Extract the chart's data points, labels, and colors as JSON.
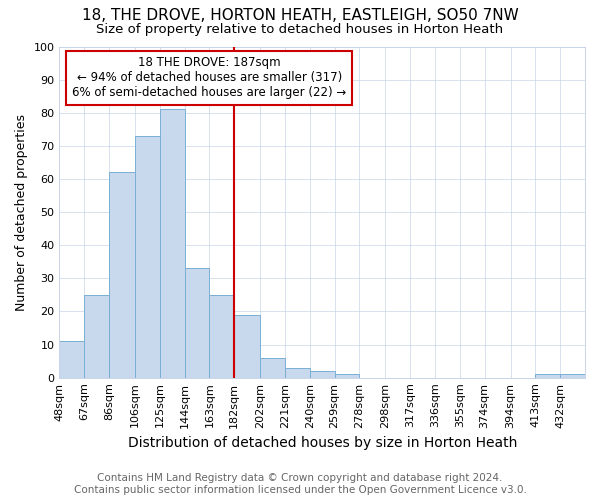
{
  "title": "18, THE DROVE, HORTON HEATH, EASTLEIGH, SO50 7NW",
  "subtitle": "Size of property relative to detached houses in Horton Heath",
  "xlabel": "Distribution of detached houses by size in Horton Heath",
  "ylabel": "Number of detached properties",
  "bin_labels": [
    "48sqm",
    "67sqm",
    "86sqm",
    "106sqm",
    "125sqm",
    "144sqm",
    "163sqm",
    "182sqm",
    "202sqm",
    "221sqm",
    "240sqm",
    "259sqm",
    "278sqm",
    "298sqm",
    "317sqm",
    "336sqm",
    "355sqm",
    "374sqm",
    "394sqm",
    "413sqm",
    "432sqm"
  ],
  "bin_edges": [
    48,
    67,
    86,
    106,
    125,
    144,
    163,
    182,
    202,
    221,
    240,
    259,
    278,
    298,
    317,
    336,
    355,
    374,
    394,
    413,
    432,
    451
  ],
  "counts": [
    11,
    25,
    62,
    73,
    81,
    33,
    25,
    19,
    6,
    3,
    2,
    1,
    0,
    0,
    0,
    0,
    0,
    0,
    0,
    1,
    1
  ],
  "bar_color": "#c8d9ee",
  "bar_edge_color": "#7aafd4",
  "vline_x": 182,
  "vline_color": "#cc0000",
  "annotation_line1": "18 THE DROVE: 187sqm",
  "annotation_line2": "← 94% of detached houses are smaller (317)",
  "annotation_line3": "6% of semi-detached houses are larger (22) →",
  "annotation_box_color": "#ffffff",
  "annotation_box_edge": "#cc0000",
  "ylim": [
    0,
    100
  ],
  "yticks": [
    0,
    10,
    20,
    30,
    40,
    50,
    60,
    70,
    80,
    90,
    100
  ],
  "footer_line1": "Contains HM Land Registry data © Crown copyright and database right 2024.",
  "footer_line2": "Contains public sector information licensed under the Open Government Licence v3.0.",
  "title_fontsize": 11,
  "subtitle_fontsize": 9.5,
  "xlabel_fontsize": 10,
  "ylabel_fontsize": 9,
  "tick_fontsize": 8,
  "annotation_fontsize": 8.5,
  "footer_fontsize": 7.5,
  "background_color": "#ffffff",
  "grid_color": "#c8d4e8"
}
